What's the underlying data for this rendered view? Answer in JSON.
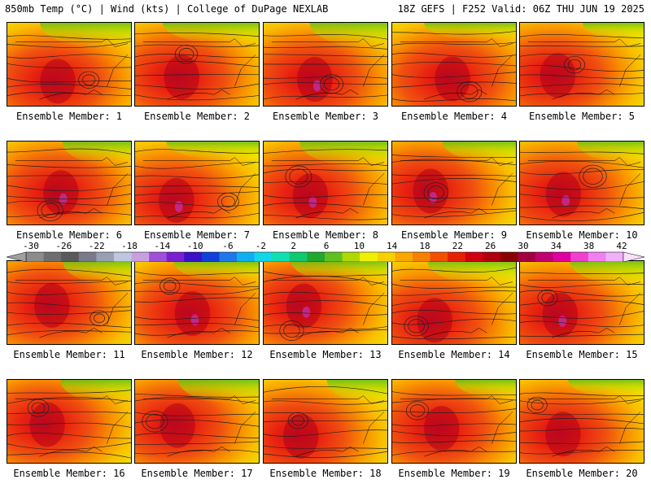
{
  "header": {
    "left": "850mb Temp (°C) | Wind (kts) | College of DuPage NEXLAB",
    "right": "18Z GEFS | F252 Valid: 06Z THU JUN 19 2025"
  },
  "panels": [
    "Ensemble Member: 1",
    "Ensemble Member: 2",
    "Ensemble Member: 3",
    "Ensemble Member: 4",
    "Ensemble Member: 5",
    "Ensemble Member: 6",
    "Ensemble Member: 7",
    "Ensemble Member: 8",
    "Ensemble Member: 9",
    "Ensemble Member: 10",
    "Ensemble Member: 11",
    "Ensemble Member: 12",
    "Ensemble Member: 13",
    "Ensemble Member: 14",
    "Ensemble Member: 15",
    "Ensemble Member: 16",
    "Ensemble Member: 17",
    "Ensemble Member: 18",
    "Ensemble Member: 19",
    "Ensemble Member: 20"
  ],
  "colorbar": {
    "tick_labels": [
      "-30",
      "-26",
      "-22",
      "-18",
      "-14",
      "-10",
      "-6",
      "-2",
      "2",
      "6",
      "10",
      "14",
      "18",
      "22",
      "26",
      "30",
      "34",
      "38",
      "42"
    ],
    "colors": [
      "#8c8c8c",
      "#6e6e6e",
      "#5a5a5a",
      "#7a7a8a",
      "#9aa0b4",
      "#bfc6e0",
      "#c8a0e0",
      "#a050d8",
      "#7a20d0",
      "#3a10c8",
      "#1040d8",
      "#2078e8",
      "#10b0f0",
      "#10d8e8",
      "#10e0b0",
      "#10c870",
      "#20a830",
      "#60c020",
      "#b0d800",
      "#f0f000",
      "#f8d000",
      "#f8a800",
      "#f88000",
      "#f05000",
      "#e82000",
      "#d00010",
      "#b00010",
      "#880000",
      "#a00040",
      "#c00070",
      "#e000a0",
      "#f040d0",
      "#f080f0",
      "#f0b0f8"
    ]
  }
}
